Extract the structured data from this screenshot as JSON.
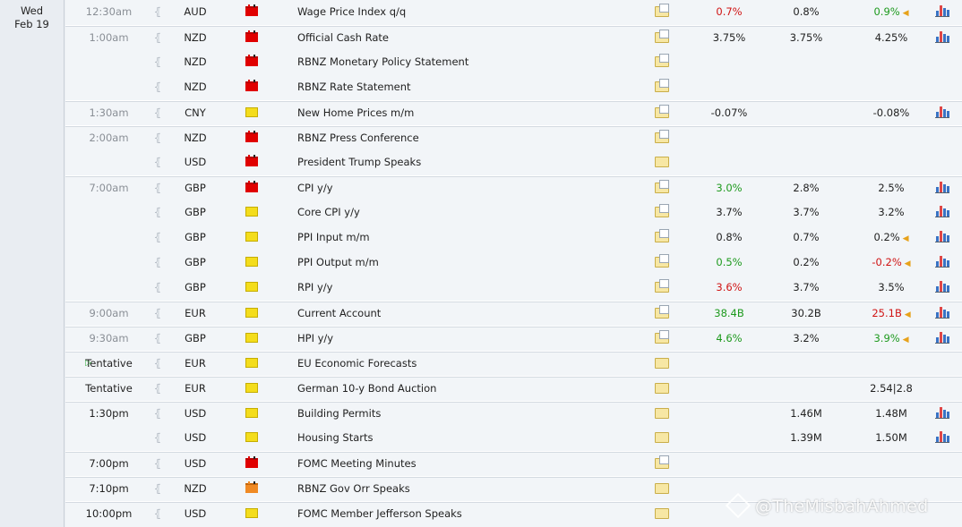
{
  "day": {
    "weekday": "Wed",
    "date": "Feb 19"
  },
  "colors": {
    "high": "#e00000",
    "medium": "#f08a24",
    "low": "#f4dd1c",
    "better": "#1e9a1e",
    "worse": "#d01414"
  },
  "watermark": "@TheMisbahAhmed",
  "rows": [
    {
      "time": "12:30am",
      "currency": "AUD",
      "impact": "high",
      "event": "Wage Price Index q/q",
      "actual": "0.7%",
      "actual_color": "red",
      "forecast": "0.8%",
      "previous": "0.9%",
      "previous_color": "green",
      "revised": true,
      "chart": true,
      "doc": true,
      "group_start": true,
      "time_dark": false
    },
    {
      "time": "1:00am",
      "currency": "NZD",
      "impact": "high",
      "event": "Official Cash Rate",
      "actual": "3.75%",
      "actual_color": "",
      "forecast": "3.75%",
      "previous": "4.25%",
      "previous_color": "",
      "revised": false,
      "chart": true,
      "doc": true,
      "group_start": true,
      "time_dark": false
    },
    {
      "time": "",
      "currency": "NZD",
      "impact": "high",
      "event": "RBNZ Monetary Policy Statement",
      "actual": "",
      "actual_color": "",
      "forecast": "",
      "previous": "",
      "previous_color": "",
      "revised": false,
      "chart": false,
      "doc": true,
      "group_start": false,
      "time_dark": false
    },
    {
      "time": "",
      "currency": "NZD",
      "impact": "high",
      "event": "RBNZ Rate Statement",
      "actual": "",
      "actual_color": "",
      "forecast": "",
      "previous": "",
      "previous_color": "",
      "revised": false,
      "chart": false,
      "doc": true,
      "group_start": false,
      "time_dark": false
    },
    {
      "time": "1:30am",
      "currency": "CNY",
      "impact": "low",
      "event": "New Home Prices m/m",
      "actual": "-0.07%",
      "actual_color": "",
      "forecast": "",
      "previous": "-0.08%",
      "previous_color": "",
      "revised": false,
      "chart": true,
      "doc": true,
      "group_start": true,
      "time_dark": false
    },
    {
      "time": "2:00am",
      "currency": "NZD",
      "impact": "high",
      "event": "RBNZ Press Conference",
      "actual": "",
      "actual_color": "",
      "forecast": "",
      "previous": "",
      "previous_color": "",
      "revised": false,
      "chart": false,
      "doc": true,
      "group_start": true,
      "time_dark": false
    },
    {
      "time": "",
      "currency": "USD",
      "impact": "high",
      "event": "President Trump Speaks",
      "actual": "",
      "actual_color": "",
      "forecast": "",
      "previous": "",
      "previous_color": "",
      "revised": false,
      "chart": false,
      "doc": false,
      "group_start": false,
      "time_dark": false
    },
    {
      "time": "7:00am",
      "currency": "GBP",
      "impact": "high",
      "event": "CPI y/y",
      "actual": "3.0%",
      "actual_color": "green",
      "forecast": "2.8%",
      "previous": "2.5%",
      "previous_color": "",
      "revised": false,
      "chart": true,
      "doc": true,
      "group_start": true,
      "time_dark": false
    },
    {
      "time": "",
      "currency": "GBP",
      "impact": "low",
      "event": "Core CPI y/y",
      "actual": "3.7%",
      "actual_color": "",
      "forecast": "3.7%",
      "previous": "3.2%",
      "previous_color": "",
      "revised": false,
      "chart": true,
      "doc": true,
      "group_start": false,
      "time_dark": false
    },
    {
      "time": "",
      "currency": "GBP",
      "impact": "low",
      "event": "PPI Input m/m",
      "actual": "0.8%",
      "actual_color": "",
      "forecast": "0.7%",
      "previous": "0.2%",
      "previous_color": "",
      "revised": true,
      "chart": true,
      "doc": true,
      "group_start": false,
      "time_dark": false
    },
    {
      "time": "",
      "currency": "GBP",
      "impact": "low",
      "event": "PPI Output m/m",
      "actual": "0.5%",
      "actual_color": "green",
      "forecast": "0.2%",
      "previous": "-0.2%",
      "previous_color": "red",
      "revised": true,
      "chart": true,
      "doc": true,
      "group_start": false,
      "time_dark": false
    },
    {
      "time": "",
      "currency": "GBP",
      "impact": "low",
      "event": "RPI y/y",
      "actual": "3.6%",
      "actual_color": "red",
      "forecast": "3.7%",
      "previous": "3.5%",
      "previous_color": "",
      "revised": false,
      "chart": true,
      "doc": true,
      "group_start": false,
      "time_dark": false
    },
    {
      "time": "9:00am",
      "currency": "EUR",
      "impact": "low",
      "event": "Current Account",
      "actual": "38.4B",
      "actual_color": "green",
      "forecast": "30.2B",
      "previous": "25.1B",
      "previous_color": "red",
      "revised": true,
      "chart": true,
      "doc": true,
      "group_start": true,
      "time_dark": false
    },
    {
      "time": "9:30am",
      "currency": "GBP",
      "impact": "low",
      "event": "HPI y/y",
      "actual": "4.6%",
      "actual_color": "green",
      "forecast": "3.2%",
      "previous": "3.9%",
      "previous_color": "green",
      "revised": true,
      "chart": true,
      "doc": true,
      "group_start": true,
      "time_dark": false
    },
    {
      "time": "Tentative",
      "currency": "EUR",
      "impact": "low",
      "event": "EU Economic Forecasts",
      "actual": "",
      "actual_color": "",
      "forecast": "",
      "previous": "",
      "previous_color": "",
      "revised": false,
      "chart": false,
      "doc": false,
      "group_start": true,
      "time_dark": true,
      "upnext": true
    },
    {
      "time": "Tentative",
      "currency": "EUR",
      "impact": "low",
      "event": "German 10-y Bond Auction",
      "actual": "",
      "actual_color": "",
      "forecast": "",
      "previous": "2.54|2.8",
      "previous_color": "",
      "revised": false,
      "chart": false,
      "doc": false,
      "group_start": true,
      "time_dark": true
    },
    {
      "time": "1:30pm",
      "currency": "USD",
      "impact": "low",
      "event": "Building Permits",
      "actual": "",
      "actual_color": "",
      "forecast": "1.46M",
      "previous": "1.48M",
      "previous_color": "",
      "revised": false,
      "chart": true,
      "doc": false,
      "group_start": true,
      "time_dark": true
    },
    {
      "time": "",
      "currency": "USD",
      "impact": "low",
      "event": "Housing Starts",
      "actual": "",
      "actual_color": "",
      "forecast": "1.39M",
      "previous": "1.50M",
      "previous_color": "",
      "revised": false,
      "chart": true,
      "doc": false,
      "group_start": false,
      "time_dark": true
    },
    {
      "time": "7:00pm",
      "currency": "USD",
      "impact": "high",
      "event": "FOMC Meeting Minutes",
      "actual": "",
      "actual_color": "",
      "forecast": "",
      "previous": "",
      "previous_color": "",
      "revised": false,
      "chart": false,
      "doc": true,
      "group_start": true,
      "time_dark": true
    },
    {
      "time": "7:10pm",
      "currency": "NZD",
      "impact": "medium",
      "event": "RBNZ Gov Orr Speaks",
      "actual": "",
      "actual_color": "",
      "forecast": "",
      "previous": "",
      "previous_color": "",
      "revised": false,
      "chart": false,
      "doc": false,
      "group_start": true,
      "time_dark": true
    },
    {
      "time": "10:00pm",
      "currency": "USD",
      "impact": "low",
      "event": "FOMC Member Jefferson Speaks",
      "actual": "",
      "actual_color": "",
      "forecast": "",
      "previous": "",
      "previous_color": "",
      "revised": false,
      "chart": false,
      "doc": false,
      "group_start": true,
      "time_dark": true
    }
  ]
}
